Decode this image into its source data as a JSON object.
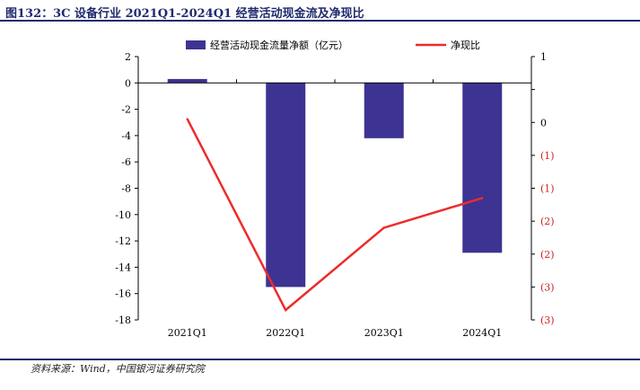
{
  "header": {
    "title": "图132：3C 设备行业 2021Q1-2024Q1 经营活动现金流及净现比"
  },
  "footer": {
    "source": "资料来源：Wind，中国银河证券研究院"
  },
  "colors": {
    "bar": "#3d3393",
    "line": "#ee2b2b",
    "title": "#1f2a6b",
    "right_axis_text": "#cc1f1f"
  },
  "chart_data": {
    "type": "bar",
    "categories": [
      "2021Q1",
      "2022Q1",
      "2023Q1",
      "2024Q1"
    ],
    "series": [
      {
        "name": "经营活动现金流量净额（亿元）",
        "type": "bar",
        "axis": "left",
        "values": [
          0.3,
          -15.5,
          -4.2,
          -12.9
        ]
      },
      {
        "name": "净现比",
        "type": "line",
        "axis": "right",
        "values": [
          0.05,
          -2.85,
          -1.6,
          -1.15
        ]
      }
    ],
    "y_left": {
      "ticks": [
        2,
        0,
        -2,
        -4,
        -6,
        -8,
        -10,
        -12,
        -14,
        -16,
        -18
      ],
      "ylim": [
        -18,
        2
      ]
    },
    "y_right": {
      "ylim": [
        -3,
        1
      ],
      "ticks": [
        1,
        0.5,
        0,
        -0.5,
        -1,
        -1.5,
        -2,
        -2.5,
        -3
      ],
      "tick_labels": [
        "1",
        "",
        "0",
        "(1)",
        "(1)",
        "(2)",
        "(2)",
        "(3)",
        "(3)"
      ]
    },
    "legend": "top",
    "grid": false
  }
}
